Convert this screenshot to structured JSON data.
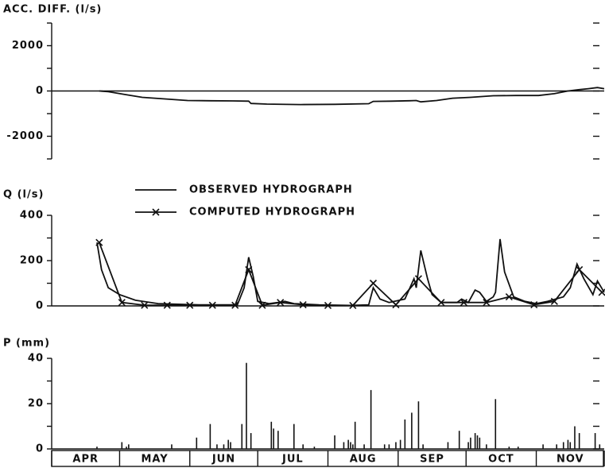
{
  "chart_data": [
    {
      "type": "line",
      "y_label": "ACC. DIFF. (l/s)",
      "xlim": [
        0,
        244
      ],
      "ylim": [
        -3000,
        3000
      ],
      "yticks": [
        2000,
        0,
        -2000
      ],
      "minor_yticks": [
        3000,
        1000,
        -1000,
        -3000
      ],
      "zero_line": true,
      "series": [
        {
          "name": null,
          "color": "#111111",
          "x": [
            21,
            25,
            32,
            40,
            50,
            60,
            70,
            80,
            87,
            88,
            95,
            110,
            125,
            140,
            142,
            150,
            158,
            161,
            163,
            170,
            177,
            185,
            195,
            205,
            215,
            222,
            228,
            233,
            237,
            241,
            244
          ],
          "values": [
            0,
            -30,
            -150,
            -280,
            -350,
            -420,
            -430,
            -440,
            -450,
            -550,
            -580,
            -600,
            -590,
            -560,
            -460,
            -450,
            -430,
            -420,
            -480,
            -420,
            -320,
            -280,
            -210,
            -200,
            -200,
            -120,
            0,
            60,
            100,
            150,
            100
          ]
        }
      ]
    },
    {
      "type": "line",
      "y_label": "Q (l/s)",
      "xlim": [
        0,
        244
      ],
      "ylim": [
        0,
        400
      ],
      "yticks": [
        400,
        200,
        0
      ],
      "minor_yticks": [
        300,
        100
      ],
      "series": [
        {
          "name": "OBSERVED HYDROGRAPH",
          "color": "#111111",
          "marker": null,
          "x": [
            20,
            22,
            25,
            30,
            37,
            47,
            65,
            82,
            85,
            87,
            89,
            91,
            96,
            100,
            103,
            107,
            118,
            132,
            140,
            142,
            145,
            149,
            156,
            160,
            161,
            163,
            166,
            168,
            172,
            179,
            181,
            184,
            187,
            189,
            192,
            195,
            196,
            198,
            200,
            204,
            209,
            214,
            219,
            226,
            229,
            232,
            235,
            239,
            241,
            244
          ],
          "values": [
            280,
            160,
            80,
            50,
            25,
            10,
            5,
            5,
            80,
            215,
            130,
            20,
            10,
            15,
            20,
            10,
            5,
            2,
            5,
            80,
            30,
            15,
            30,
            120,
            80,
            245,
            120,
            50,
            15,
            15,
            30,
            15,
            70,
            60,
            20,
            40,
            60,
            295,
            150,
            40,
            20,
            10,
            20,
            40,
            80,
            185,
            120,
            50,
            110,
            60
          ]
        },
        {
          "name": "COMPUTED HYDROGRAPH",
          "color": "#111111",
          "marker": "x",
          "x": [
            21,
            31,
            41,
            51,
            61,
            71,
            81,
            87,
            93,
            101,
            111,
            122,
            133,
            142,
            152,
            162,
            172,
            182,
            192,
            202,
            213,
            222,
            233,
            243
          ],
          "values": [
            280,
            15,
            3,
            3,
            3,
            3,
            3,
            160,
            3,
            15,
            5,
            2,
            2,
            100,
            5,
            120,
            15,
            15,
            15,
            40,
            5,
            20,
            160,
            60
          ]
        }
      ]
    },
    {
      "type": "bar",
      "y_label": "P (mm)",
      "xlim": [
        0,
        244
      ],
      "ylim": [
        0,
        40
      ],
      "yticks": [
        40,
        20,
        0
      ],
      "minor_yticks": [
        30,
        10
      ],
      "color": "#111111",
      "categories": [
        "APR",
        "MAY",
        "JUN",
        "JUL",
        "AUG",
        "SEP",
        "OCT",
        "NOV"
      ],
      "month_boundaries": [
        0,
        30,
        61,
        91,
        122,
        153,
        183,
        214,
        244
      ],
      "x": [
        20,
        31,
        33,
        34,
        53,
        64,
        70,
        73,
        76,
        78,
        79,
        84,
        86,
        88,
        97,
        98,
        100,
        107,
        111,
        116,
        125,
        129,
        131,
        132,
        133,
        134,
        138,
        141,
        147,
        149,
        152,
        154,
        156,
        159,
        162,
        164,
        175,
        180,
        184,
        185,
        187,
        188,
        189,
        192,
        196,
        202,
        206,
        217,
        223,
        226,
        228,
        229,
        231,
        233,
        240,
        242
      ],
      "values": [
        1,
        3,
        1,
        2,
        2,
        5,
        11,
        2,
        2,
        4,
        3,
        11,
        38,
        7,
        12,
        9,
        8,
        11,
        2,
        1,
        6,
        3,
        4,
        3,
        2,
        12,
        2,
        26,
        2,
        2,
        3,
        4,
        13,
        16,
        21,
        2,
        3,
        8,
        3,
        5,
        7,
        6,
        5,
        2,
        22,
        1,
        1,
        2,
        2,
        3,
        4,
        3,
        10,
        7,
        7,
        2
      ]
    }
  ]
}
